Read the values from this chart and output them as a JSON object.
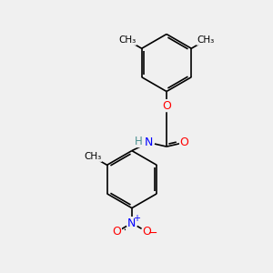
{
  "background_color": "#f0f0f0",
  "bond_color": "#000000",
  "lw": 1.2,
  "double_sep": 0.08,
  "atom_colors": {
    "O": "#ff0000",
    "N": "#0000ff",
    "H": "#4a8f8f",
    "C": "#000000"
  },
  "figsize": [
    3.0,
    3.0
  ],
  "dpi": 100,
  "xlim": [
    -0.5,
    9.5
  ],
  "ylim": [
    -0.5,
    9.5
  ]
}
